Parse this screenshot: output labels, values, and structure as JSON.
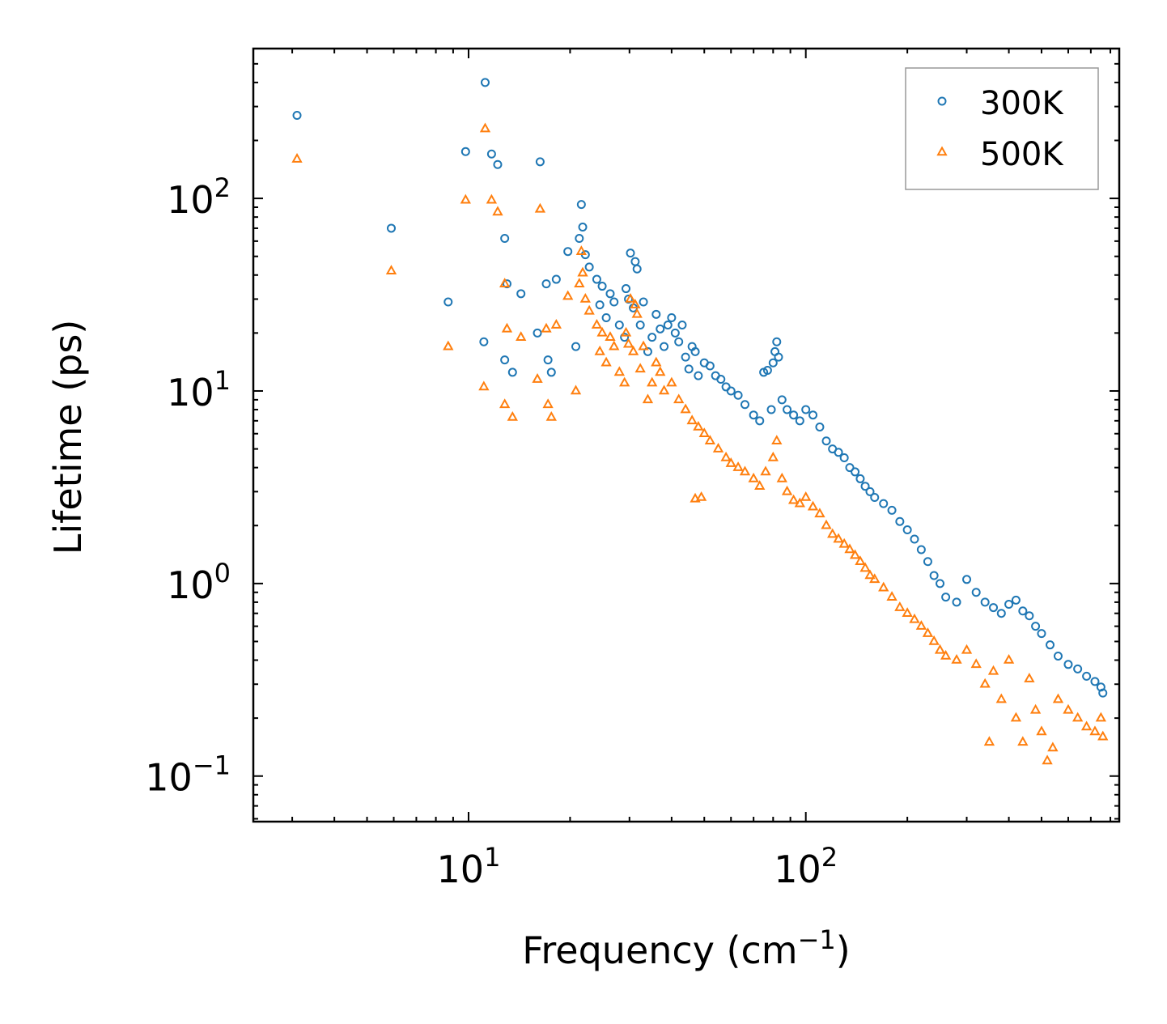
{
  "chart_data": {
    "type": "scatter",
    "xscale": "log",
    "yscale": "log",
    "xlabel": "Frequency (cm",
    "xlabel_exp": "−1",
    "xlabel_suffix": ")",
    "ylabel": "Lifetime (ps)",
    "xlim": [
      2.3,
      850
    ],
    "ylim": [
      0.058,
      600
    ],
    "x_ticks": [
      {
        "value": 10,
        "base": "10",
        "exp": "1"
      },
      {
        "value": 100,
        "base": "10",
        "exp": "2"
      }
    ],
    "y_ticks": [
      {
        "value": 0.1,
        "base": "10",
        "exp": "−1"
      },
      {
        "value": 1,
        "base": "10",
        "exp": "0"
      },
      {
        "value": 10,
        "base": "10",
        "exp": "1"
      },
      {
        "value": 100,
        "base": "10",
        "exp": "2"
      }
    ],
    "legend_position": "top-right",
    "series": [
      {
        "name": "300K",
        "marker": "circle",
        "color": "#1f77b4",
        "points": [
          [
            3.1,
            270
          ],
          [
            5.9,
            70
          ],
          [
            8.7,
            29
          ],
          [
            9.8,
            175
          ],
          [
            11.2,
            400
          ],
          [
            11.7,
            170
          ],
          [
            12.2,
            150
          ],
          [
            12.8,
            62
          ],
          [
            11.1,
            18
          ],
          [
            12.8,
            14.5
          ],
          [
            13.0,
            36
          ],
          [
            13.5,
            12.5
          ],
          [
            14.3,
            32
          ],
          [
            16.0,
            20
          ],
          [
            16.3,
            155
          ],
          [
            17.0,
            36
          ],
          [
            17.2,
            14.5
          ],
          [
            17.6,
            12.5
          ],
          [
            18.2,
            38
          ],
          [
            19.7,
            53
          ],
          [
            20.8,
            17
          ],
          [
            21.3,
            62
          ],
          [
            21.6,
            93
          ],
          [
            21.8,
            71
          ],
          [
            22.2,
            51
          ],
          [
            22.8,
            44
          ],
          [
            24.0,
            38
          ],
          [
            24.5,
            28
          ],
          [
            24.9,
            35
          ],
          [
            25.6,
            24
          ],
          [
            26.3,
            32
          ],
          [
            27.0,
            29
          ],
          [
            28.0,
            22
          ],
          [
            29.0,
            19
          ],
          [
            29.3,
            34
          ],
          [
            29.8,
            30
          ],
          [
            30.2,
            52
          ],
          [
            30.8,
            27
          ],
          [
            31.2,
            47
          ],
          [
            31.6,
            43
          ],
          [
            32.3,
            22
          ],
          [
            33.0,
            29
          ],
          [
            34.0,
            16
          ],
          [
            35.0,
            19
          ],
          [
            36.0,
            25
          ],
          [
            37.0,
            21
          ],
          [
            38.0,
            17
          ],
          [
            39.0,
            22
          ],
          [
            40.0,
            24
          ],
          [
            41.0,
            20
          ],
          [
            42.0,
            18
          ],
          [
            43.0,
            22
          ],
          [
            44.0,
            15
          ],
          [
            45.0,
            13
          ],
          [
            46.0,
            17
          ],
          [
            47.0,
            16
          ],
          [
            48.0,
            12
          ],
          [
            50.0,
            14
          ],
          [
            52.0,
            13.5
          ],
          [
            54.0,
            12
          ],
          [
            56.0,
            11.5
          ],
          [
            58.0,
            10.5
          ],
          [
            60.0,
            10
          ],
          [
            63.0,
            9.5
          ],
          [
            66.0,
            8.5
          ],
          [
            70.0,
            7.5
          ],
          [
            73.0,
            7
          ],
          [
            75.0,
            12.5
          ],
          [
            77.0,
            12.8
          ],
          [
            79.0,
            8
          ],
          [
            80.0,
            14
          ],
          [
            81.0,
            16
          ],
          [
            82.0,
            18
          ],
          [
            83.0,
            15
          ],
          [
            85.0,
            9
          ],
          [
            88.0,
            8
          ],
          [
            92.0,
            7.5
          ],
          [
            96.0,
            7
          ],
          [
            100.0,
            8
          ],
          [
            105.0,
            7.5
          ],
          [
            110.0,
            6.5
          ],
          [
            115.0,
            5.5
          ],
          [
            120.0,
            5
          ],
          [
            125.0,
            4.8
          ],
          [
            130.0,
            4.5
          ],
          [
            135.0,
            4
          ],
          [
            140.0,
            3.8
          ],
          [
            145.0,
            3.5
          ],
          [
            150.0,
            3.2
          ],
          [
            155.0,
            3
          ],
          [
            160.0,
            2.8
          ],
          [
            170.0,
            2.6
          ],
          [
            180.0,
            2.4
          ],
          [
            190.0,
            2.1
          ],
          [
            200.0,
            1.9
          ],
          [
            210.0,
            1.7
          ],
          [
            220.0,
            1.5
          ],
          [
            230.0,
            1.3
          ],
          [
            240.0,
            1.1
          ],
          [
            250.0,
            1.0
          ],
          [
            260.0,
            0.85
          ],
          [
            280.0,
            0.8
          ],
          [
            300.0,
            1.05
          ],
          [
            320.0,
            0.9
          ],
          [
            340.0,
            0.8
          ],
          [
            360.0,
            0.75
          ],
          [
            380.0,
            0.7
          ],
          [
            400.0,
            0.78
          ],
          [
            420.0,
            0.82
          ],
          [
            440.0,
            0.72
          ],
          [
            460.0,
            0.68
          ],
          [
            480.0,
            0.6
          ],
          [
            500.0,
            0.55
          ],
          [
            530.0,
            0.48
          ],
          [
            560.0,
            0.42
          ],
          [
            600.0,
            0.38
          ],
          [
            640.0,
            0.36
          ],
          [
            680.0,
            0.33
          ],
          [
            720.0,
            0.31
          ],
          [
            750.0,
            0.29
          ],
          [
            760.0,
            0.27
          ]
        ]
      },
      {
        "name": "500K",
        "marker": "triangle",
        "color": "#ff7f0e",
        "points": [
          [
            3.1,
            160
          ],
          [
            5.9,
            42
          ],
          [
            8.7,
            17
          ],
          [
            9.8,
            98
          ],
          [
            11.2,
            230
          ],
          [
            11.7,
            98
          ],
          [
            12.2,
            85
          ],
          [
            12.8,
            36
          ],
          [
            11.1,
            10.5
          ],
          [
            12.8,
            8.5
          ],
          [
            13.0,
            21
          ],
          [
            13.5,
            7.3
          ],
          [
            14.3,
            19
          ],
          [
            16.0,
            11.5
          ],
          [
            16.3,
            88
          ],
          [
            17.0,
            21
          ],
          [
            17.2,
            8.5
          ],
          [
            17.6,
            7.3
          ],
          [
            18.2,
            22
          ],
          [
            19.7,
            31
          ],
          [
            20.8,
            10
          ],
          [
            21.3,
            36
          ],
          [
            21.6,
            53
          ],
          [
            21.8,
            41
          ],
          [
            22.2,
            30
          ],
          [
            22.8,
            26
          ],
          [
            24.0,
            22
          ],
          [
            24.5,
            16
          ],
          [
            24.9,
            20
          ],
          [
            25.6,
            14
          ],
          [
            26.3,
            19
          ],
          [
            27.0,
            17
          ],
          [
            28.0,
            12.5
          ],
          [
            29.0,
            11
          ],
          [
            29.3,
            20
          ],
          [
            29.8,
            17.5
          ],
          [
            30.2,
            30
          ],
          [
            30.8,
            16
          ],
          [
            31.2,
            28
          ],
          [
            31.6,
            25
          ],
          [
            32.3,
            13
          ],
          [
            33.0,
            17
          ],
          [
            34.0,
            9
          ],
          [
            35.0,
            11
          ],
          [
            36.0,
            14
          ],
          [
            37.0,
            12.5
          ],
          [
            38.0,
            10
          ],
          [
            40.0,
            11
          ],
          [
            42.0,
            9
          ],
          [
            44.0,
            8
          ],
          [
            46.0,
            7
          ],
          [
            47.0,
            2.75
          ],
          [
            48.0,
            6.5
          ],
          [
            49.0,
            2.8
          ],
          [
            50.0,
            6
          ],
          [
            52.0,
            5.5
          ],
          [
            55.0,
            5
          ],
          [
            58.0,
            4.5
          ],
          [
            60.0,
            4.2
          ],
          [
            63.0,
            4
          ],
          [
            66.0,
            3.8
          ],
          [
            70.0,
            3.5
          ],
          [
            73.0,
            3.2
          ],
          [
            76.0,
            3.8
          ],
          [
            80.0,
            4.5
          ],
          [
            82.0,
            5.5
          ],
          [
            85.0,
            3.5
          ],
          [
            88.0,
            3
          ],
          [
            92.0,
            2.7
          ],
          [
            96.0,
            2.6
          ],
          [
            100.0,
            2.8
          ],
          [
            105.0,
            2.5
          ],
          [
            110.0,
            2.3
          ],
          [
            115.0,
            2.0
          ],
          [
            120.0,
            1.8
          ],
          [
            125.0,
            1.7
          ],
          [
            130.0,
            1.6
          ],
          [
            135.0,
            1.5
          ],
          [
            140.0,
            1.4
          ],
          [
            145.0,
            1.3
          ],
          [
            150.0,
            1.2
          ],
          [
            155.0,
            1.1
          ],
          [
            160.0,
            1.05
          ],
          [
            170.0,
            0.95
          ],
          [
            180.0,
            0.85
          ],
          [
            190.0,
            0.75
          ],
          [
            200.0,
            0.7
          ],
          [
            210.0,
            0.65
          ],
          [
            220.0,
            0.6
          ],
          [
            230.0,
            0.55
          ],
          [
            240.0,
            0.5
          ],
          [
            250.0,
            0.45
          ],
          [
            260.0,
            0.42
          ],
          [
            280.0,
            0.4
          ],
          [
            300.0,
            0.45
          ],
          [
            320.0,
            0.38
          ],
          [
            340.0,
            0.3
          ],
          [
            350.0,
            0.15
          ],
          [
            360.0,
            0.35
          ],
          [
            380.0,
            0.25
          ],
          [
            400.0,
            0.4
          ],
          [
            420.0,
            0.2
          ],
          [
            440.0,
            0.15
          ],
          [
            460.0,
            0.32
          ],
          [
            480.0,
            0.22
          ],
          [
            500.0,
            0.17
          ],
          [
            520.0,
            0.12
          ],
          [
            540.0,
            0.14
          ],
          [
            560.0,
            0.25
          ],
          [
            600.0,
            0.22
          ],
          [
            640.0,
            0.2
          ],
          [
            680.0,
            0.18
          ],
          [
            720.0,
            0.17
          ],
          [
            750.0,
            0.2
          ],
          [
            760.0,
            0.16
          ]
        ]
      }
    ]
  }
}
